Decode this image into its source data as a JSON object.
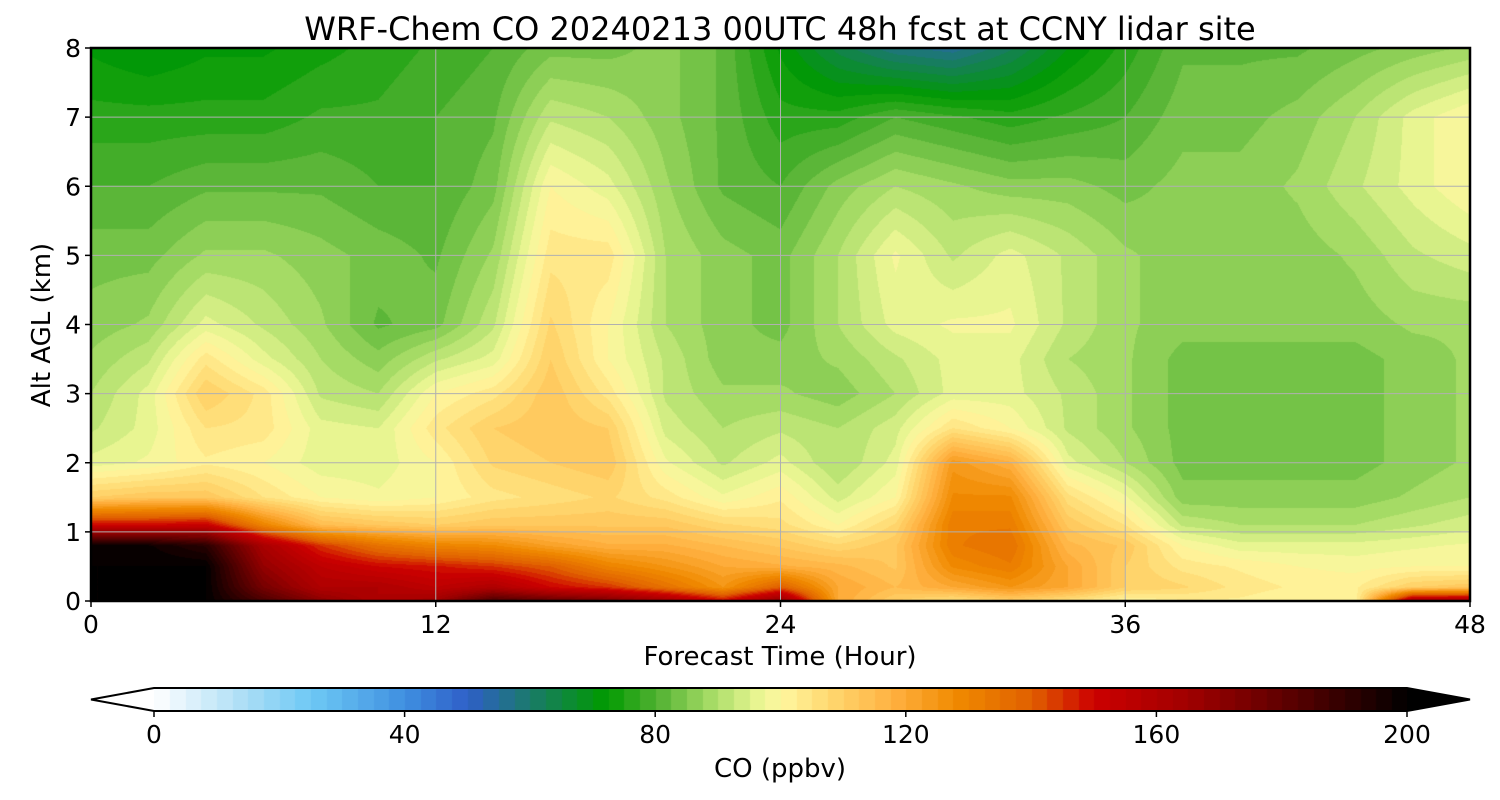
{
  "chart_data": {
    "type": "heatmap",
    "title": "WRF-Chem CO  20240213 00UTC 48h fcst at CCNY lidar site",
    "xlabel": "Forecast Time (Hour)",
    "ylabel": "Alt AGL (km)",
    "xlim": [
      0,
      48
    ],
    "ylim": [
      0,
      8
    ],
    "x_ticks": [
      "0",
      "12",
      "24",
      "36",
      "48"
    ],
    "y_ticks": [
      "0",
      "1",
      "2",
      "3",
      "4",
      "5",
      "6",
      "7",
      "8"
    ],
    "grid": true,
    "colorbar": {
      "label": "CO  (ppbv)",
      "vmin": 0,
      "vmax": 200,
      "ticks": [
        "0",
        "40",
        "80",
        "120",
        "160",
        "200"
      ],
      "extend": "both",
      "placement": "bottom",
      "colors": [
        {
          "v": 0,
          "c": "#ffffff"
        },
        {
          "v": 15,
          "c": "#a8dcf5"
        },
        {
          "v": 25,
          "c": "#6ec9f5"
        },
        {
          "v": 40,
          "c": "#3f8fe0"
        },
        {
          "v": 50,
          "c": "#2f5fc8"
        },
        {
          "v": 60,
          "c": "#1a7a6a"
        },
        {
          "v": 72,
          "c": "#009a00"
        },
        {
          "v": 80,
          "c": "#4fb030"
        },
        {
          "v": 88,
          "c": "#9ed860"
        },
        {
          "v": 96,
          "c": "#e6f590"
        },
        {
          "v": 100,
          "c": "#fff7a0"
        },
        {
          "v": 108,
          "c": "#ffd76e"
        },
        {
          "v": 118,
          "c": "#ffb040"
        },
        {
          "v": 128,
          "c": "#f08a00"
        },
        {
          "v": 140,
          "c": "#e06000"
        },
        {
          "v": 150,
          "c": "#cc0000"
        },
        {
          "v": 165,
          "c": "#a00000"
        },
        {
          "v": 180,
          "c": "#600000"
        },
        {
          "v": 195,
          "c": "#1a0000"
        },
        {
          "v": 200,
          "c": "#000000"
        }
      ]
    },
    "time_hours": [
      0,
      2,
      4,
      6,
      8,
      10,
      12,
      14,
      16,
      18,
      20,
      22,
      24,
      26,
      28,
      30,
      32,
      34,
      36,
      38,
      40,
      42,
      44,
      46,
      48
    ],
    "altitude_km": [
      0,
      0.2,
      0.5,
      0.8,
      1.1,
      1.5,
      2.0,
      2.5,
      3.0,
      3.5,
      4.0,
      5.0,
      6.0,
      7.0,
      8.0
    ],
    "co_ppbv": [
      [
        200,
        200,
        200,
        185,
        170,
        160,
        165,
        185,
        180,
        175,
        165,
        150,
        170,
        120,
        110,
        105,
        110,
        105,
        100,
        102,
        102,
        100,
        100,
        165,
        165
      ],
      [
        200,
        200,
        200,
        175,
        160,
        160,
        155,
        160,
        150,
        145,
        135,
        125,
        140,
        120,
        115,
        120,
        125,
        120,
        110,
        108,
        104,
        102,
        102,
        110,
        112
      ],
      [
        200,
        200,
        200,
        168,
        155,
        150,
        148,
        145,
        140,
        130,
        125,
        120,
        118,
        116,
        112,
        128,
        132,
        120,
        110,
        104,
        102,
        100,
        99,
        100,
        100
      ],
      [
        198,
        198,
        192,
        162,
        145,
        135,
        130,
        128,
        122,
        118,
        118,
        115,
        112,
        108,
        112,
        132,
        135,
        116,
        112,
        100,
        96,
        96,
        96,
        97,
        98
      ],
      [
        150,
        150,
        152,
        130,
        115,
        112,
        110,
        112,
        112,
        112,
        112,
        108,
        106,
        100,
        108,
        132,
        132,
        112,
        105,
        92,
        90,
        90,
        90,
        92,
        94
      ],
      [
        110,
        112,
        112,
        105,
        100,
        98,
        100,
        104,
        106,
        108,
        104,
        98,
        102,
        94,
        100,
        128,
        128,
        106,
        98,
        86,
        86,
        86,
        86,
        88,
        90
      ],
      [
        96,
        98,
        102,
        100,
        96,
        96,
        100,
        108,
        110,
        112,
        98,
        92,
        96,
        90,
        96,
        124,
        118,
        96,
        90,
        84,
        84,
        84,
        84,
        86,
        88
      ],
      [
        92,
        96,
        105,
        104,
        96,
        95,
        104,
        110,
        112,
        110,
        94,
        90,
        92,
        90,
        94,
        105,
        100,
        92,
        88,
        84,
        84,
        84,
        84,
        86,
        88
      ],
      [
        90,
        96,
        110,
        104,
        92,
        90,
        100,
        104,
        112,
        104,
        92,
        88,
        88,
        86,
        90,
        96,
        96,
        92,
        88,
        84,
        84,
        84,
        84,
        86,
        88
      ],
      [
        88,
        92,
        104,
        96,
        90,
        86,
        92,
        96,
        110,
        100,
        92,
        86,
        86,
        88,
        92,
        96,
        96,
        90,
        88,
        84,
        84,
        84,
        84,
        86,
        88
      ],
      [
        86,
        88,
        96,
        92,
        88,
        82,
        84,
        92,
        108,
        100,
        90,
        86,
        84,
        90,
        96,
        98,
        98,
        92,
        88,
        86,
        86,
        86,
        86,
        88,
        88
      ],
      [
        84,
        84,
        88,
        88,
        86,
        84,
        82,
        88,
        104,
        104,
        90,
        86,
        84,
        90,
        98,
        92,
        96,
        92,
        88,
        86,
        86,
        86,
        88,
        92,
        94
      ],
      [
        80,
        80,
        82,
        82,
        82,
        80,
        80,
        84,
        100,
        96,
        88,
        82,
        80,
        86,
        90,
        88,
        86,
        86,
        84,
        86,
        86,
        88,
        92,
        96,
        100
      ],
      [
        76,
        76,
        76,
        76,
        78,
        78,
        80,
        82,
        92,
        90,
        86,
        82,
        76,
        76,
        80,
        78,
        76,
        78,
        80,
        84,
        84,
        86,
        90,
        96,
        100
      ],
      [
        72,
        70,
        72,
        72,
        74,
        76,
        78,
        80,
        84,
        84,
        86,
        82,
        72,
        64,
        58,
        56,
        62,
        70,
        76,
        82,
        82,
        82,
        84,
        86,
        88
      ]
    ]
  }
}
